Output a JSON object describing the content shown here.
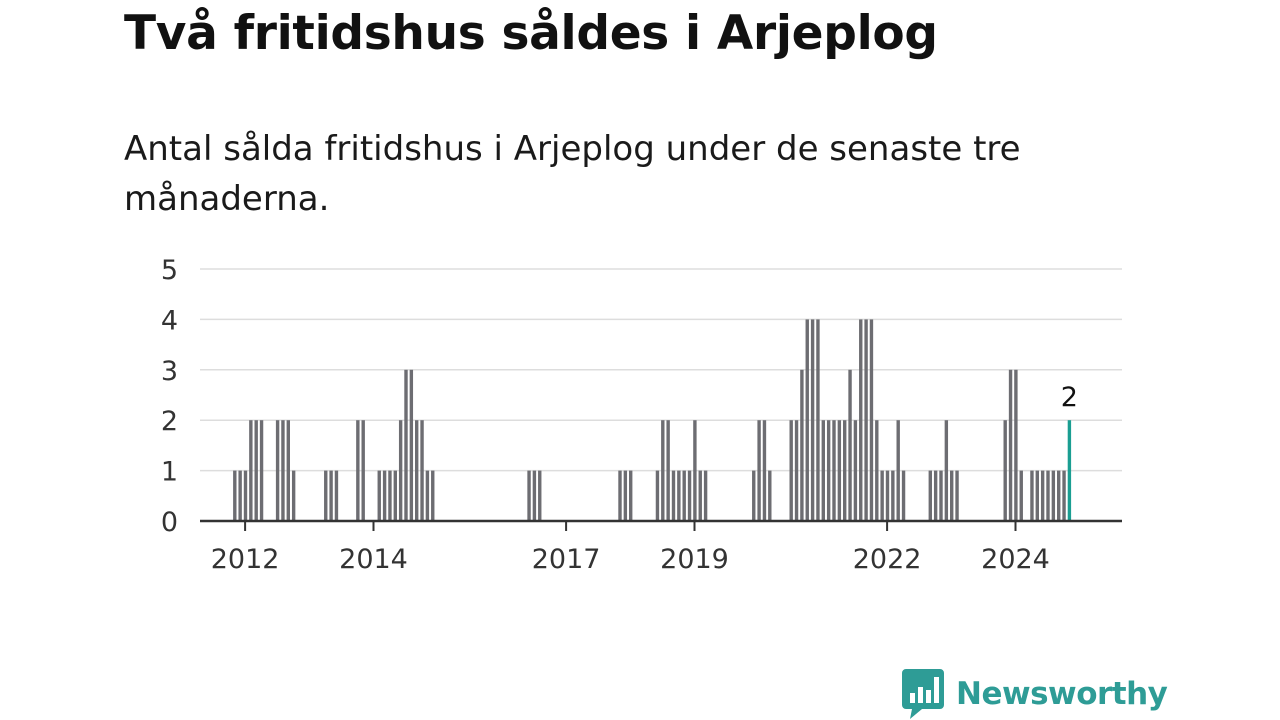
{
  "title": "Två fritidshus såldes i Arjeplog",
  "subtitle": "Antal sålda fritidshus i Arjeplog under de senaste tre månaderna.",
  "brand": {
    "name": "Newsworthy",
    "logo_icon": "chat-bar-chart-icon",
    "color": "#2e9c96"
  },
  "colors": {
    "bar": "#6d6d72",
    "highlight": "#1a9e92",
    "grid": "#dddddd",
    "axis": "#333333",
    "text": "#333333"
  },
  "chart_data": {
    "type": "bar",
    "title": "Två fritidshus såldes i Arjeplog",
    "subtitle": "Antal sålda fritidshus i Arjeplog under de senaste tre månaderna.",
    "xlabel": "",
    "ylabel": "",
    "ylim": [
      0,
      5
    ],
    "yticks": [
      0,
      1,
      2,
      3,
      4,
      5
    ],
    "xticks": [
      "2012",
      "2014",
      "2017",
      "2019",
      "2022",
      "2024"
    ],
    "grid": true,
    "x_start": "2011-11",
    "x_end": "2025-02",
    "highlight_label": "2",
    "points": [
      {
        "month": "2012-01",
        "value": 1
      },
      {
        "month": "2012-02",
        "value": 1
      },
      {
        "month": "2012-03",
        "value": 1
      },
      {
        "month": "2012-04",
        "value": 2
      },
      {
        "month": "2012-05",
        "value": 2
      },
      {
        "month": "2012-06",
        "value": 2
      },
      {
        "month": "2012-07",
        "value": 0
      },
      {
        "month": "2012-08",
        "value": 0
      },
      {
        "month": "2012-09",
        "value": 2
      },
      {
        "month": "2012-10",
        "value": 2
      },
      {
        "month": "2012-11",
        "value": 2
      },
      {
        "month": "2012-12",
        "value": 1
      },
      {
        "month": "2013-06",
        "value": 1
      },
      {
        "month": "2013-07",
        "value": 1
      },
      {
        "month": "2013-08",
        "value": 1
      },
      {
        "month": "2013-12",
        "value": 2
      },
      {
        "month": "2014-01",
        "value": 2
      },
      {
        "month": "2014-04",
        "value": 1
      },
      {
        "month": "2014-05",
        "value": 1
      },
      {
        "month": "2014-06",
        "value": 1
      },
      {
        "month": "2014-07",
        "value": 1
      },
      {
        "month": "2014-08",
        "value": 2
      },
      {
        "month": "2014-09",
        "value": 3
      },
      {
        "month": "2014-10",
        "value": 3
      },
      {
        "month": "2014-11",
        "value": 2
      },
      {
        "month": "2014-12",
        "value": 2
      },
      {
        "month": "2015-01",
        "value": 1
      },
      {
        "month": "2015-02",
        "value": 1
      },
      {
        "month": "2016-08",
        "value": 1
      },
      {
        "month": "2016-09",
        "value": 1
      },
      {
        "month": "2016-10",
        "value": 1
      },
      {
        "month": "2018-01",
        "value": 1
      },
      {
        "month": "2018-02",
        "value": 1
      },
      {
        "month": "2018-03",
        "value": 1
      },
      {
        "month": "2018-08",
        "value": 1
      },
      {
        "month": "2018-09",
        "value": 2
      },
      {
        "month": "2018-10",
        "value": 2
      },
      {
        "month": "2018-11",
        "value": 1
      },
      {
        "month": "2018-12",
        "value": 1
      },
      {
        "month": "2019-01",
        "value": 1
      },
      {
        "month": "2019-02",
        "value": 1
      },
      {
        "month": "2019-03",
        "value": 2
      },
      {
        "month": "2019-04",
        "value": 1
      },
      {
        "month": "2019-05",
        "value": 1
      },
      {
        "month": "2020-02",
        "value": 1
      },
      {
        "month": "2020-03",
        "value": 2
      },
      {
        "month": "2020-04",
        "value": 2
      },
      {
        "month": "2020-05",
        "value": 1
      },
      {
        "month": "2020-09",
        "value": 2
      },
      {
        "month": "2020-10",
        "value": 2
      },
      {
        "month": "2020-11",
        "value": 3
      },
      {
        "month": "2020-12",
        "value": 4
      },
      {
        "month": "2021-01",
        "value": 4
      },
      {
        "month": "2021-02",
        "value": 4
      },
      {
        "month": "2021-03",
        "value": 2
      },
      {
        "month": "2021-04",
        "value": 2
      },
      {
        "month": "2021-05",
        "value": 2
      },
      {
        "month": "2021-06",
        "value": 2
      },
      {
        "month": "2021-07",
        "value": 2
      },
      {
        "month": "2021-08",
        "value": 3
      },
      {
        "month": "2021-09",
        "value": 2
      },
      {
        "month": "2021-10",
        "value": 4
      },
      {
        "month": "2021-11",
        "value": 4
      },
      {
        "month": "2021-12",
        "value": 4
      },
      {
        "month": "2022-01",
        "value": 2
      },
      {
        "month": "2022-02",
        "value": 1
      },
      {
        "month": "2022-03",
        "value": 1
      },
      {
        "month": "2022-04",
        "value": 1
      },
      {
        "month": "2022-05",
        "value": 2
      },
      {
        "month": "2022-06",
        "value": 1
      },
      {
        "month": "2022-11",
        "value": 1
      },
      {
        "month": "2022-12",
        "value": 1
      },
      {
        "month": "2023-01",
        "value": 1
      },
      {
        "month": "2023-02",
        "value": 2
      },
      {
        "month": "2023-03",
        "value": 1
      },
      {
        "month": "2023-04",
        "value": 1
      },
      {
        "month": "2024-01",
        "value": 2
      },
      {
        "month": "2024-02",
        "value": 3
      },
      {
        "month": "2024-03",
        "value": 3
      },
      {
        "month": "2024-04",
        "value": 1
      },
      {
        "month": "2024-06",
        "value": 1
      },
      {
        "month": "2024-07",
        "value": 1
      },
      {
        "month": "2024-08",
        "value": 1
      },
      {
        "month": "2024-09",
        "value": 1
      },
      {
        "month": "2024-10",
        "value": 1
      },
      {
        "month": "2024-11",
        "value": 1
      },
      {
        "month": "2024-12",
        "value": 1
      },
      {
        "month": "2025-01",
        "value": 2,
        "highlight": true
      }
    ]
  }
}
